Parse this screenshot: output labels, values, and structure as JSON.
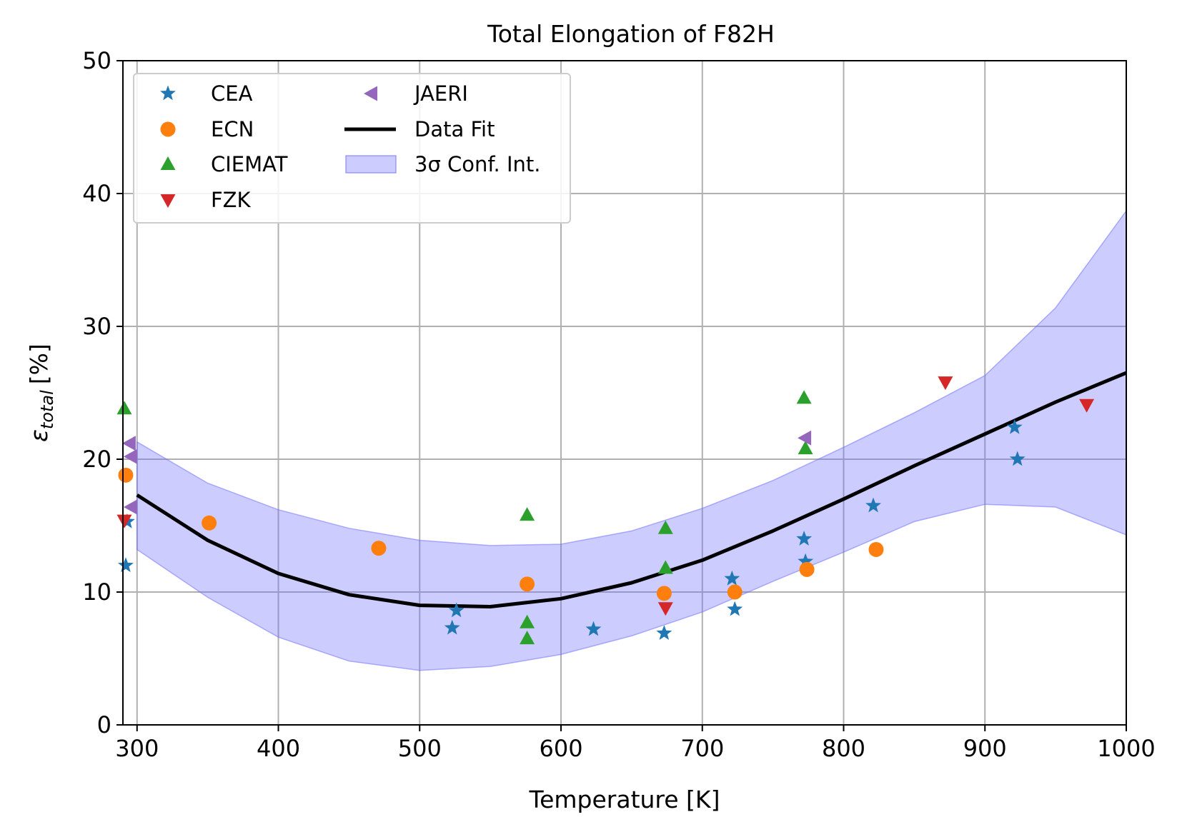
{
  "chart_data": {
    "type": "scatter",
    "title": "Total Elongation of F82H",
    "xlabel": "Temperature [K]",
    "ylabel_symbol": "ε",
    "ylabel_subscript": "total",
    "ylabel_unit": "[%]",
    "xlim": [
      290,
      1000
    ],
    "ylim": [
      0,
      50
    ],
    "xticks": [
      300,
      400,
      500,
      600,
      700,
      800,
      900,
      1000
    ],
    "yticks": [
      0,
      10,
      20,
      30,
      40,
      50
    ],
    "grid": true,
    "legend_position": "top-left",
    "series": [
      {
        "name": "CEA",
        "marker": "star",
        "color": "#1f77b4",
        "points": [
          [
            292,
            12.0
          ],
          [
            293,
            15.3
          ],
          [
            523,
            7.3
          ],
          [
            526,
            8.6
          ],
          [
            623,
            7.2
          ],
          [
            673,
            6.9
          ],
          [
            721,
            11.0
          ],
          [
            723,
            8.7
          ],
          [
            772,
            14.0
          ],
          [
            773,
            12.3
          ],
          [
            821,
            16.5
          ],
          [
            921,
            22.4
          ],
          [
            923,
            20.0
          ]
        ]
      },
      {
        "name": "ECN",
        "marker": "circle",
        "color": "#ff7f0e",
        "points": [
          [
            292,
            18.8
          ],
          [
            351,
            15.2
          ],
          [
            471,
            13.3
          ],
          [
            576,
            10.6
          ],
          [
            673,
            9.9
          ],
          [
            723,
            10.0
          ],
          [
            774,
            11.7
          ],
          [
            823,
            13.2
          ]
        ]
      },
      {
        "name": "CIEMAT",
        "marker": "triangle-up",
        "color": "#2ca02c",
        "points": [
          [
            291,
            23.8
          ],
          [
            576,
            15.8
          ],
          [
            576,
            7.7
          ],
          [
            576,
            6.5
          ],
          [
            674,
            14.8
          ],
          [
            674,
            11.8
          ],
          [
            772,
            24.6
          ],
          [
            773,
            20.8
          ]
        ]
      },
      {
        "name": "FZK",
        "marker": "triangle-down",
        "color": "#d62728",
        "points": [
          [
            291,
            15.4
          ],
          [
            674,
            8.8
          ],
          [
            872,
            25.8
          ],
          [
            972,
            24.1
          ]
        ]
      },
      {
        "name": "JAERI",
        "marker": "triangle-left",
        "color": "#9467bd",
        "points": [
          [
            295,
            21.2
          ],
          [
            296,
            20.2
          ],
          [
            296,
            16.4
          ],
          [
            773,
            21.6
          ]
        ]
      }
    ],
    "fit": {
      "name": "Data Fit",
      "color": "#000000",
      "x": [
        300,
        350,
        400,
        450,
        500,
        550,
        600,
        650,
        700,
        750,
        800,
        850,
        900,
        950,
        1000
      ],
      "y": [
        17.3,
        13.9,
        11.4,
        9.8,
        9.0,
        8.9,
        9.5,
        10.7,
        12.4,
        14.6,
        17.0,
        19.5,
        21.9,
        24.3,
        26.5
      ],
      "band_name": "3σ Conf. Int.",
      "band_color": "#6a6aff",
      "lower": [
        13.2,
        9.6,
        6.6,
        4.8,
        4.1,
        4.4,
        5.3,
        6.7,
        8.5,
        10.8,
        13.0,
        15.3,
        16.6,
        16.4,
        14.3
      ],
      "upper": [
        21.3,
        18.2,
        16.2,
        14.8,
        13.9,
        13.5,
        13.6,
        14.6,
        16.3,
        18.4,
        20.9,
        23.5,
        26.3,
        31.4,
        38.7
      ]
    }
  }
}
